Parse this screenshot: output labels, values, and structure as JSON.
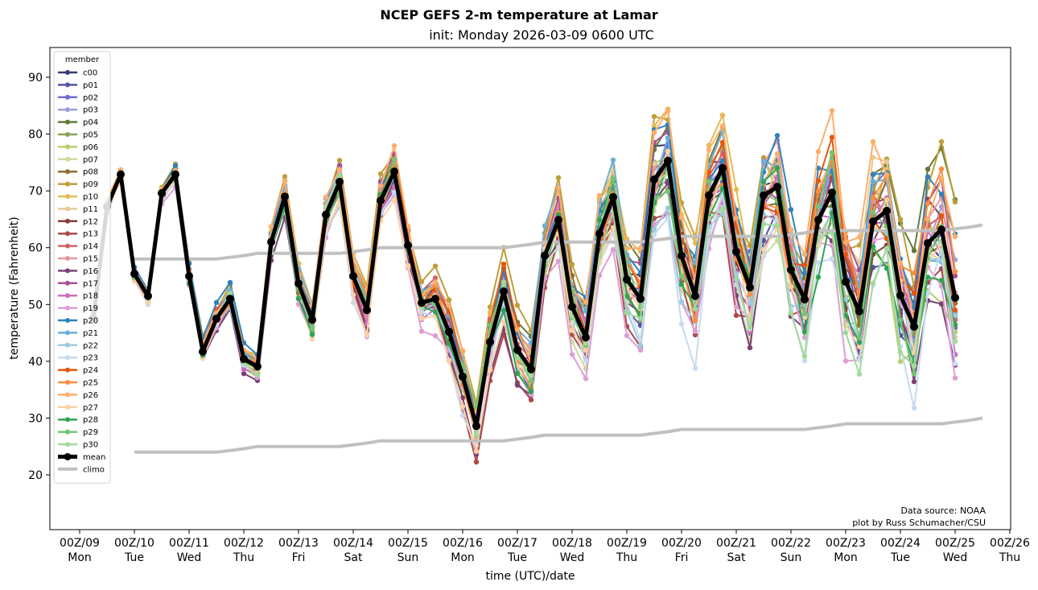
{
  "chart_data": {
    "type": "line",
    "title": "NCEP GEFS 2-m temperature at Lamar",
    "subtitle": "init: Monday 2026-03-09 0600 UTC",
    "xlabel": "time (UTC)/date",
    "ylabel": "temperature (Fahrenheit)",
    "ylim": [
      10.5,
      95.2
    ],
    "xlim_days": [
      -0.75,
      17.1
    ],
    "yticks": [
      20,
      30,
      40,
      50,
      60,
      70,
      80,
      90
    ],
    "xticks": [
      {
        "line1": "00Z/09",
        "line2": "Mon"
      },
      {
        "line1": "00Z/10",
        "line2": "Tue"
      },
      {
        "line1": "00Z/11",
        "line2": "Wed"
      },
      {
        "line1": "00Z/12",
        "line2": "Thu"
      },
      {
        "line1": "00Z/13",
        "line2": "Fri"
      },
      {
        "line1": "00Z/14",
        "line2": "Sat"
      },
      {
        "line1": "00Z/15",
        "line2": "Sun"
      },
      {
        "line1": "00Z/16",
        "line2": "Mon"
      },
      {
        "line1": "00Z/17",
        "line2": "Tue"
      },
      {
        "line1": "00Z/18",
        "line2": "Wed"
      },
      {
        "line1": "00Z/19",
        "line2": "Thu"
      },
      {
        "line1": "00Z/20",
        "line2": "Fri"
      },
      {
        "line1": "00Z/21",
        "line2": "Sat"
      },
      {
        "line1": "00Z/22",
        "line2": "Sun"
      },
      {
        "line1": "00Z/23",
        "line2": "Mon"
      },
      {
        "line1": "00Z/24",
        "line2": "Tue"
      },
      {
        "line1": "00Z/25",
        "line2": "Wed"
      },
      {
        "line1": "00Z/26",
        "line2": "Thu"
      }
    ],
    "grid": false,
    "legend": {
      "title": "member",
      "placement": "top-left"
    },
    "credits": [
      "Data source: NOAA",
      "plot by Russ Schumacher/CSU"
    ],
    "time_step_hours": 6,
    "first_time": "06Z/09",
    "mean": {
      "name": "mean",
      "color": "#000000",
      "values": [
        47.6,
        67.2,
        72.9,
        55.4,
        51.5,
        69.6,
        72.9,
        55.0,
        41.7,
        47.5,
        51.0,
        40.4,
        39.1,
        61.0,
        69.0,
        53.7,
        47.3,
        65.8,
        71.6,
        55.0,
        49.0,
        68.3,
        73.4,
        60.4,
        50.3,
        51.0,
        45.2,
        37.3,
        28.6,
        43.4,
        52.3,
        42.0,
        38.6,
        58.6,
        64.9,
        49.6,
        44.2,
        62.5,
        68.9,
        54.4,
        51.0,
        72.0,
        75.3,
        58.6,
        51.5,
        69.2,
        74.0,
        59.3,
        53.0,
        69.2,
        70.7,
        56.1,
        50.9,
        64.9,
        69.7,
        54.0,
        48.8,
        64.6,
        66.5,
        51.6,
        46.1,
        60.8,
        63.2,
        51.2
      ]
    },
    "climo": {
      "name": "climo",
      "color": "#c0c0c0",
      "start_index": 3,
      "high": [
        58,
        58,
        58,
        58,
        58,
        58,
        58,
        58.3,
        58.6,
        59,
        59,
        59,
        59,
        59,
        59,
        59,
        59.3,
        59.6,
        60,
        60,
        60,
        60,
        60,
        60,
        60,
        60,
        60,
        60,
        60.3,
        60.6,
        61,
        61,
        61,
        61,
        61,
        61,
        61,
        61,
        61.3,
        61.6,
        62,
        62,
        62,
        62,
        62,
        62,
        62,
        62,
        62.3,
        62.6,
        63,
        63,
        63,
        63,
        63,
        63,
        63,
        63,
        63,
        63,
        63.3,
        63.6,
        64
      ],
      "low": [
        24,
        24,
        24,
        24,
        24,
        24,
        24,
        24.3,
        24.6,
        25,
        25,
        25,
        25,
        25,
        25,
        25,
        25.3,
        25.6,
        26,
        26,
        26,
        26,
        26,
        26,
        26,
        26,
        26,
        26,
        26.3,
        26.6,
        27,
        27,
        27,
        27,
        27,
        27,
        27,
        27,
        27.3,
        27.6,
        28,
        28,
        28,
        28,
        28,
        28,
        28,
        28,
        28,
        28,
        28.3,
        28.6,
        29,
        29,
        29,
        29,
        29,
        29,
        29,
        29,
        29.3,
        29.6,
        30
      ]
    },
    "members": [
      {
        "name": "c00",
        "color": "#393b79"
      },
      {
        "name": "p01",
        "color": "#5254a3"
      },
      {
        "name": "p02",
        "color": "#6b6ecf"
      },
      {
        "name": "p03",
        "color": "#9c9ede"
      },
      {
        "name": "p04",
        "color": "#637939"
      },
      {
        "name": "p05",
        "color": "#8ca252"
      },
      {
        "name": "p06",
        "color": "#b5cf6b"
      },
      {
        "name": "p07",
        "color": "#cedb9c"
      },
      {
        "name": "p08",
        "color": "#8c6d31"
      },
      {
        "name": "p09",
        "color": "#bd9e39"
      },
      {
        "name": "p10",
        "color": "#e7ba52"
      },
      {
        "name": "p11",
        "color": "#e7cb94"
      },
      {
        "name": "p12",
        "color": "#843c39"
      },
      {
        "name": "p13",
        "color": "#ad494a"
      },
      {
        "name": "p14",
        "color": "#d6616b"
      },
      {
        "name": "p15",
        "color": "#e7969c"
      },
      {
        "name": "p16",
        "color": "#7b4173"
      },
      {
        "name": "p17",
        "color": "#a55194"
      },
      {
        "name": "p18",
        "color": "#ce6dbd"
      },
      {
        "name": "p19",
        "color": "#de9ed6"
      },
      {
        "name": "p20",
        "color": "#3182bd"
      },
      {
        "name": "p21",
        "color": "#6baed6"
      },
      {
        "name": "p22",
        "color": "#9ecae1"
      },
      {
        "name": "p23",
        "color": "#c6dbef"
      },
      {
        "name": "p24",
        "color": "#e6550d"
      },
      {
        "name": "p25",
        "color": "#fd8d3c"
      },
      {
        "name": "p26",
        "color": "#fdae6b"
      },
      {
        "name": "p27",
        "color": "#fdd0a2"
      },
      {
        "name": "p28",
        "color": "#31a354"
      },
      {
        "name": "p29",
        "color": "#74c476"
      },
      {
        "name": "p30",
        "color": "#a1d99b"
      }
    ],
    "member_spread_note": "individual member traces approximated as mean plus time-growing spread",
    "member_spread_growth": [
      1.5,
      22
    ]
  }
}
